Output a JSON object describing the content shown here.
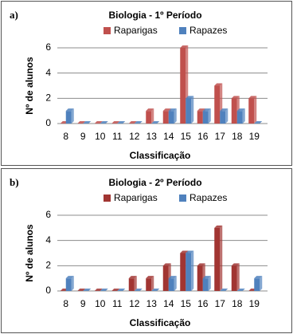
{
  "chart_data": [
    {
      "type": "bar",
      "panel_label": "a)",
      "title": "Biologia - 1º Período",
      "categories": [
        "8",
        "9",
        "10",
        "11",
        "12",
        "13",
        "14",
        "15",
        "16",
        "17",
        "18",
        "19"
      ],
      "series": [
        {
          "name": "Raparigas",
          "color": "#c0504d",
          "values": [
            0,
            0,
            0,
            0,
            0,
            1,
            1,
            6,
            1,
            3,
            2,
            2
          ]
        },
        {
          "name": "Rapazes",
          "color": "#4f81bd",
          "values": [
            1,
            0,
            0,
            0,
            0,
            0,
            1,
            2,
            1,
            1,
            1,
            0
          ]
        }
      ],
      "ylim": [
        0,
        6
      ],
      "yticks": [
        0,
        2,
        4,
        6
      ],
      "grid": true,
      "x_label": "Classificação",
      "y_label": "Nº de alunos"
    },
    {
      "type": "bar",
      "panel_label": "b)",
      "title": "Biologia - 2º Período",
      "categories": [
        "8",
        "9",
        "10",
        "11",
        "12",
        "13",
        "14",
        "15",
        "16",
        "17",
        "18",
        "19"
      ],
      "series": [
        {
          "name": "Raparigas",
          "color": "#a13532",
          "values": [
            0,
            0,
            0,
            0,
            1,
            1,
            2,
            3,
            2,
            5,
            2,
            0
          ]
        },
        {
          "name": "Rapazes",
          "color": "#4f81bd",
          "values": [
            1,
            0,
            0,
            0,
            0,
            0,
            1,
            3,
            1,
            0,
            0,
            1
          ]
        }
      ],
      "ylim": [
        0,
        6
      ],
      "yticks": [
        0,
        2,
        4,
        6
      ],
      "grid": true,
      "x_label": "Classificação",
      "y_label": "Nº de alunos"
    }
  ]
}
